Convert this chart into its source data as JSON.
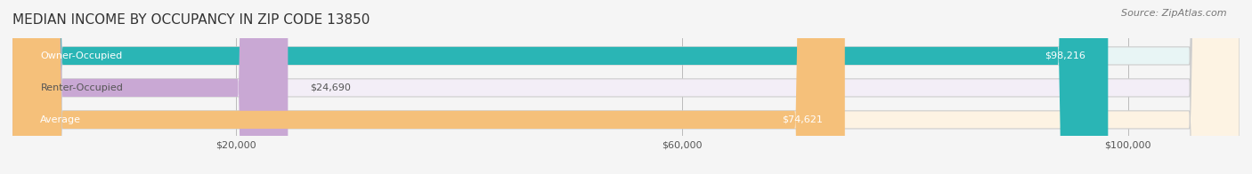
{
  "title": "MEDIAN INCOME BY OCCUPANCY IN ZIP CODE 13850",
  "source": "Source: ZipAtlas.com",
  "categories": [
    "Owner-Occupied",
    "Renter-Occupied",
    "Average"
  ],
  "values": [
    98216,
    24690,
    74621
  ],
  "labels": [
    "$98,216",
    "$24,690",
    "$74,621"
  ],
  "bar_colors": [
    "#2ab5b5",
    "#c9a8d4",
    "#f5c07a"
  ],
  "bar_bg_colors": [
    "#e8f5f5",
    "#f3eef7",
    "#fdf3e3"
  ],
  "xmax": 110000,
  "xticks": [
    0,
    20000,
    60000,
    100000
  ],
  "xticklabels": [
    "",
    "$20,000",
    "$60,000",
    "$100,000"
  ],
  "figsize": [
    14.06,
    1.96
  ],
  "dpi": 100,
  "title_fontsize": 11,
  "source_fontsize": 8,
  "label_fontsize": 8,
  "bar_label_fontsize": 8,
  "cat_label_fontsize": 8
}
